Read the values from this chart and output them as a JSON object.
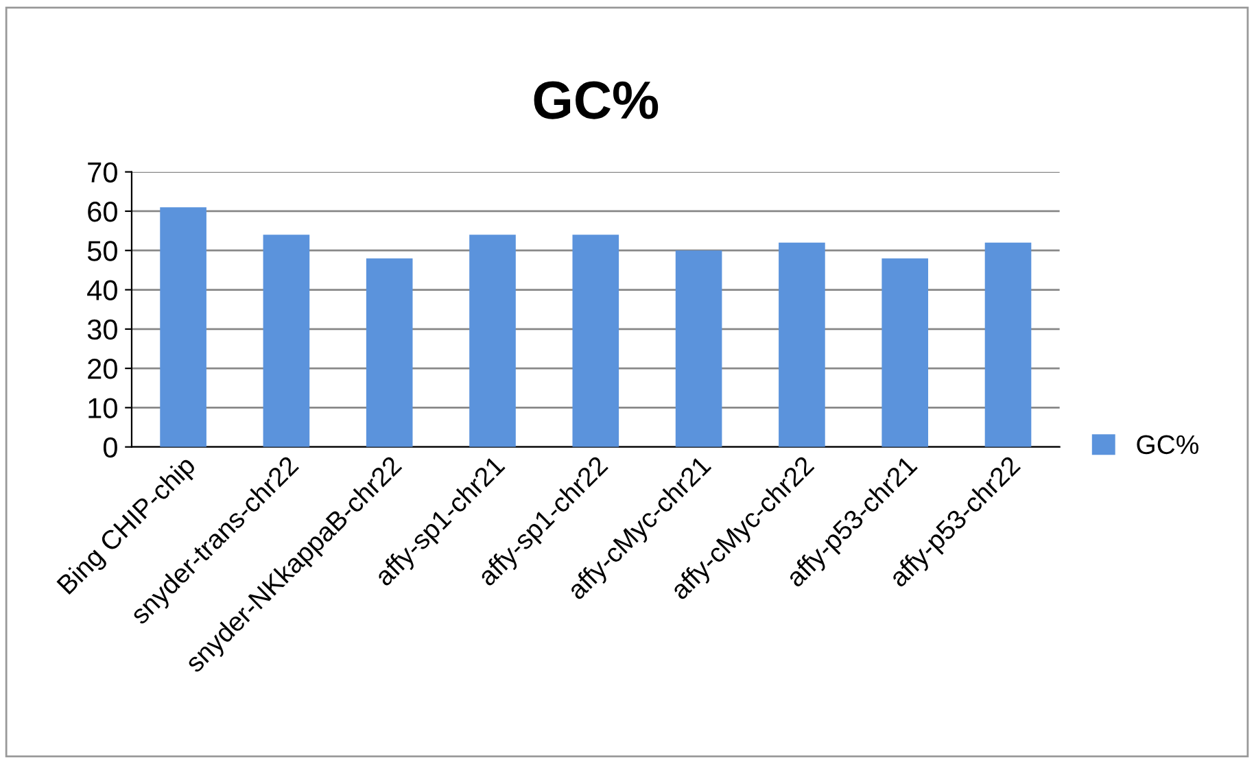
{
  "chart_data": {
    "type": "bar",
    "title": "GC%",
    "categories": [
      "Bing CHIP-chip",
      "snyder-trans-chr22",
      "snyder-NKkappaB-chr22",
      "affy-sp1-chr21",
      "affy-sp1-chr22",
      "affy-cMyc-chr21",
      "affy-cMyc-chr22",
      "affy-p53-chr21",
      "affy-p53-chr22"
    ],
    "series": [
      {
        "name": "GC%",
        "color": "#5b93dc",
        "values": [
          61,
          54,
          48,
          54,
          54,
          50,
          52,
          48,
          52
        ]
      }
    ],
    "ylim": [
      0,
      70
    ],
    "yticks": [
      0,
      10,
      20,
      30,
      40,
      50,
      60,
      70
    ],
    "grid": "y",
    "legend": "right"
  }
}
